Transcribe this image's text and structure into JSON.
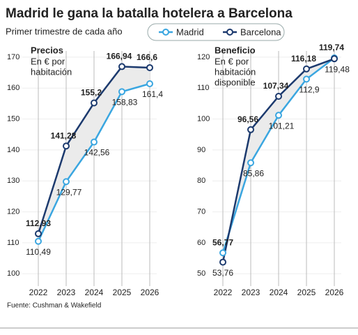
{
  "title": "Madrid le gana la batalla hotelera a Barcelona",
  "subtitle": "Primer trimestre de cada año",
  "source": "Fuente: Cushman & Wakefield",
  "chart_data": [
    {
      "type": "line",
      "title": "Precios",
      "subtitle": [
        "En € por",
        "habitación"
      ],
      "categories": [
        "2022",
        "2023",
        "2024",
        "2025",
        "2026"
      ],
      "series": [
        {
          "name": "Madrid",
          "color": "#3aa6e0",
          "values": [
            110.49,
            129.77,
            142.56,
            158.83,
            161.4
          ],
          "value_labels": [
            "110,49",
            "129,77",
            "142,56",
            "158,83",
            "161,4"
          ]
        },
        {
          "name": "Barcelona",
          "color": "#1c3a6e",
          "values": [
            112.93,
            141.28,
            155.2,
            166.94,
            166.6
          ],
          "value_labels": [
            "112,93",
            "141,28",
            "155,2",
            "166,94",
            "166,6"
          ]
        }
      ],
      "ylim": [
        96,
        172
      ],
      "yticks": [
        100,
        110,
        120,
        130,
        140,
        150,
        160,
        170
      ],
      "fill_between": true
    },
    {
      "type": "line",
      "title": "Beneficio",
      "subtitle": [
        "En € por",
        "habitación",
        "disponible"
      ],
      "categories": [
        "2022",
        "2023",
        "2024",
        "2025",
        "2026"
      ],
      "series": [
        {
          "name": "Madrid",
          "color": "#3aa6e0",
          "values": [
            56.77,
            85.86,
            101.21,
            112.9,
            119.74
          ],
          "value_labels": [
            "56,77",
            "85,86",
            "101,21",
            "112,9",
            "119,74"
          ]
        },
        {
          "name": "Barcelona",
          "color": "#1c3a6e",
          "values": [
            53.76,
            96.56,
            107.34,
            116.18,
            119.48
          ],
          "value_labels": [
            "53,76",
            "96,56",
            "107,34",
            "116,18",
            "119,48"
          ]
        }
      ],
      "ylim": [
        46,
        122
      ],
      "yticks": [
        50,
        60,
        70,
        80,
        90,
        100,
        110,
        120
      ],
      "fill_between": true
    }
  ]
}
